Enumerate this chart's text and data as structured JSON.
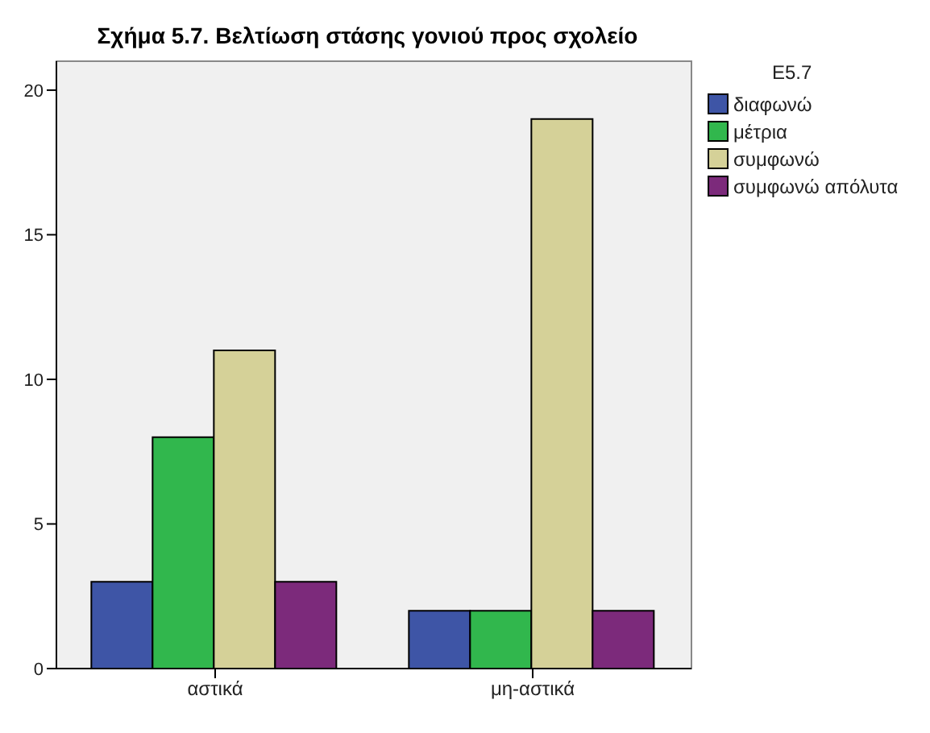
{
  "chart_data": {
    "type": "bar",
    "title": "Σχήμα 5.7. Βελτίωση στάσης γονιού προς σχολείο",
    "legend_title": "E5.7",
    "categories": [
      "αστικά",
      "μη-αστικά"
    ],
    "series": [
      {
        "name": "διαφωνώ",
        "color": "#3e55a6",
        "values": [
          3,
          2
        ]
      },
      {
        "name": "μέτρια",
        "color": "#31b74d",
        "values": [
          8,
          2
        ]
      },
      {
        "name": "συμφωνώ",
        "color": "#d5d198",
        "values": [
          11,
          19
        ]
      },
      {
        "name": "συμφωνώ απόλυτα",
        "color": "#7c2a7b",
        "values": [
          3,
          2
        ]
      }
    ],
    "ylim": [
      0,
      21
    ],
    "yticks": [
      0,
      5,
      10,
      15,
      20
    ],
    "legend": "top right"
  }
}
